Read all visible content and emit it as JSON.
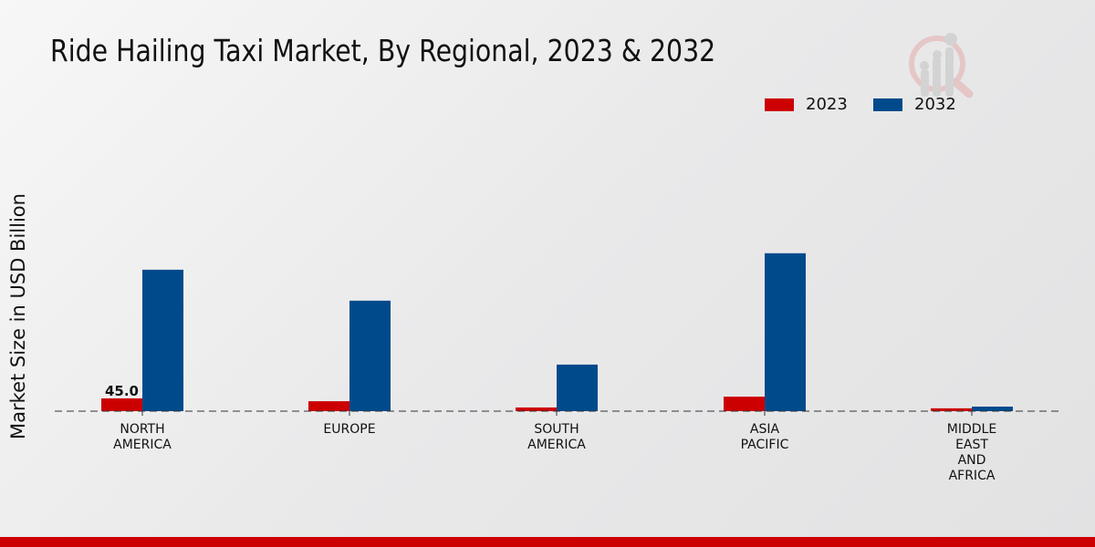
{
  "chart_data": {
    "type": "bar",
    "title": "Ride Hailing Taxi Market, By Regional, 2023 & 2032",
    "xlabel": "",
    "ylabel": "Market Size in USD Billion",
    "categories": [
      [
        "NORTH",
        "AMERICA"
      ],
      [
        "EUROPE"
      ],
      [
        "SOUTH",
        "AMERICA"
      ],
      [
        "ASIA",
        "PACIFIC"
      ],
      [
        "MIDDLE",
        "EAST",
        "AND",
        "AFRICA"
      ]
    ],
    "series": [
      {
        "name": "2023",
        "color": "#cc0000",
        "values": [
          45.0,
          35,
          13,
          51,
          10
        ]
      },
      {
        "name": "2032",
        "color": "#004a8c",
        "values": [
          498,
          389,
          164,
          556,
          16
        ]
      }
    ],
    "data_labels": [
      {
        "series": 0,
        "index": 0,
        "text": "45.0"
      }
    ],
    "legend_position": "top-right",
    "grid": false
  }
}
